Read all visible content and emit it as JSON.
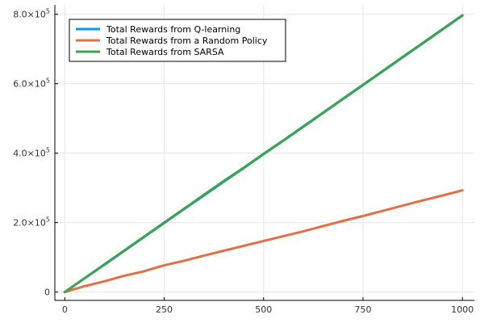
{
  "chart_data": {
    "type": "line",
    "title": "",
    "xlabel": "",
    "ylabel": "",
    "xlim": [
      0,
      1000
    ],
    "ylim": [
      0,
      800000
    ],
    "x_ticks": [
      {
        "value": 0,
        "label": "0"
      },
      {
        "value": 250,
        "label": "250"
      },
      {
        "value": 500,
        "label": "500"
      },
      {
        "value": 750,
        "label": "750"
      },
      {
        "value": 1000,
        "label": "1000"
      }
    ],
    "y_ticks": [
      {
        "value": 0,
        "mantissa": "0",
        "exponent": ""
      },
      {
        "value": 200000,
        "mantissa": "2.0×10",
        "exponent": "5"
      },
      {
        "value": 400000,
        "mantissa": "4.0×10",
        "exponent": "5"
      },
      {
        "value": 600000,
        "mantissa": "6.0×10",
        "exponent": "5"
      },
      {
        "value": 800000,
        "mantissa": "8.0×10",
        "exponent": "5"
      }
    ],
    "grid": true,
    "legend_position": "top-left",
    "series": [
      {
        "name": "Total Rewards from Q-learning",
        "color": "#009af9",
        "x": [
          0,
          50,
          100,
          150,
          200,
          250,
          300,
          350,
          400,
          450,
          500,
          550,
          600,
          650,
          700,
          750,
          800,
          850,
          900,
          950,
          1000
        ],
        "y": [
          0,
          40000,
          79000,
          119000,
          159000,
          199000,
          239000,
          278000,
          318000,
          357000,
          397000,
          436000,
          476000,
          516000,
          556000,
          596000,
          636000,
          676000,
          716000,
          756000,
          796000
        ]
      },
      {
        "name": "Total Rewards from a Random Policy",
        "color": "#e26f46",
        "x": [
          0,
          50,
          100,
          150,
          200,
          250,
          300,
          350,
          400,
          450,
          500,
          550,
          600,
          650,
          700,
          750,
          800,
          850,
          900,
          950,
          1000
        ],
        "y": [
          0,
          17000,
          31000,
          47000,
          60000,
          77000,
          90000,
          105000,
          119000,
          133000,
          147000,
          161000,
          175000,
          190000,
          205000,
          219000,
          234000,
          249000,
          264000,
          278000,
          293000
        ]
      },
      {
        "name": "Total Rewards from SARSA",
        "color": "#3da44d",
        "x": [
          0,
          50,
          100,
          150,
          200,
          250,
          300,
          350,
          400,
          450,
          500,
          550,
          600,
          650,
          700,
          750,
          800,
          850,
          900,
          950,
          1000
        ],
        "y": [
          0,
          40000,
          80000,
          120000,
          160000,
          200000,
          240000,
          280000,
          320000,
          358000,
          398000,
          437000,
          477000,
          517000,
          557000,
          597000,
          637000,
          677000,
          717000,
          757000,
          797000
        ]
      }
    ]
  }
}
